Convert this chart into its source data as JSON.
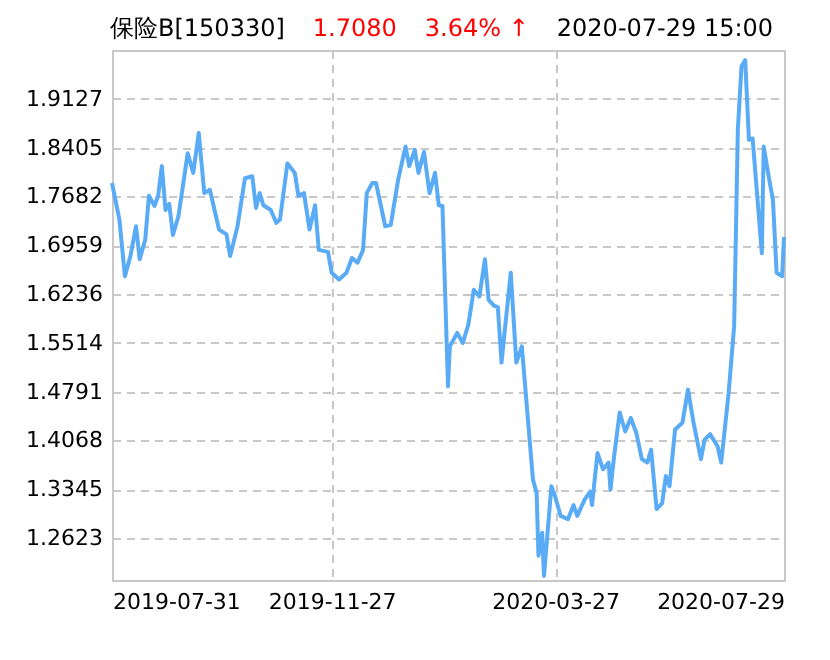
{
  "chart_data": {
    "type": "line",
    "title": "保险B[150330]",
    "annotations": [
      "1.7080",
      "3.64% ↑",
      "2020-07-29 15:00"
    ],
    "x": [
      "2019-07-31",
      "2019-08-04",
      "2019-08-07",
      "2019-08-10",
      "2019-08-13",
      "2019-08-15",
      "2019-08-18",
      "2019-08-20",
      "2019-08-23",
      "2019-08-25",
      "2019-08-27",
      "2019-08-29",
      "2019-08-31",
      "2019-09-02",
      "2019-09-05",
      "2019-09-10",
      "2019-09-13",
      "2019-09-16",
      "2019-09-19",
      "2019-09-22",
      "2019-09-27",
      "2019-10-01",
      "2019-10-03",
      "2019-10-07",
      "2019-10-11",
      "2019-10-15",
      "2019-10-17",
      "2019-10-19",
      "2019-10-21",
      "2019-10-25",
      "2019-10-28",
      "2019-10-30",
      "2019-11-03",
      "2019-11-07",
      "2019-11-09",
      "2019-11-12",
      "2019-11-15",
      "2019-11-18",
      "2019-11-20",
      "2019-11-25",
      "2019-11-27",
      "2019-12-01",
      "2019-12-05",
      "2019-12-08",
      "2019-12-11",
      "2019-12-14",
      "2019-12-16",
      "2019-12-19",
      "2019-12-21",
      "2019-12-26",
      "2019-12-29",
      "2020-01-02",
      "2020-01-06",
      "2020-01-08",
      "2020-01-11",
      "2020-01-13",
      "2020-01-16",
      "2020-01-19",
      "2020-01-22",
      "2020-01-24",
      "2020-01-26",
      "2020-01-29",
      "2020-01-30",
      "2020-02-03",
      "2020-02-06",
      "2020-02-09",
      "2020-02-12",
      "2020-02-15",
      "2020-02-18",
      "2020-02-20",
      "2020-02-23",
      "2020-02-25",
      "2020-02-27",
      "2020-02-29",
      "2020-03-03",
      "2020-03-06",
      "2020-03-09",
      "2020-03-15",
      "2020-03-17",
      "2020-03-18",
      "2020-03-20",
      "2020-03-21",
      "2020-03-25",
      "2020-03-27",
      "2020-03-30",
      "2020-04-03",
      "2020-04-06",
      "2020-04-08",
      "2020-04-12",
      "2020-04-15",
      "2020-04-16",
      "2020-04-19",
      "2020-04-22",
      "2020-04-25",
      "2020-04-26",
      "2020-04-28",
      "2020-05-01",
      "2020-05-04",
      "2020-05-07",
      "2020-05-10",
      "2020-05-13",
      "2020-05-16",
      "2020-05-18",
      "2020-05-21",
      "2020-05-24",
      "2020-05-26",
      "2020-05-28",
      "2020-05-31",
      "2020-06-04",
      "2020-06-07",
      "2020-06-10",
      "2020-06-14",
      "2020-06-16",
      "2020-06-19",
      "2020-06-23",
      "2020-06-25",
      "2020-06-29",
      "2020-07-02",
      "2020-07-04",
      "2020-07-06",
      "2020-07-08",
      "2020-07-10",
      "2020-07-12",
      "2020-07-17",
      "2020-07-18",
      "2020-07-21",
      "2020-07-23",
      "2020-07-25",
      "2020-07-28",
      "2020-07-29"
    ],
    "series": [
      {
        "color": "#5aabf5",
        "values": [
          1.788,
          1.734,
          1.65,
          1.68,
          1.724,
          1.675,
          1.704,
          1.769,
          1.754,
          1.769,
          1.813,
          1.748,
          1.757,
          1.711,
          1.739,
          1.832,
          1.803,
          1.862,
          1.773,
          1.778,
          1.719,
          1.712,
          1.68,
          1.724,
          1.795,
          1.798,
          1.751,
          1.773,
          1.755,
          1.748,
          1.729,
          1.734,
          1.817,
          1.803,
          1.769,
          1.773,
          1.719,
          1.755,
          1.689,
          1.686,
          1.655,
          1.645,
          1.655,
          1.677,
          1.67,
          1.689,
          1.773,
          1.788,
          1.788,
          1.724,
          1.726,
          1.793,
          1.842,
          1.813,
          1.837,
          1.803,
          1.834,
          1.773,
          1.803,
          1.755,
          1.754,
          1.487,
          1.546,
          1.566,
          1.551,
          1.578,
          1.63,
          1.62,
          1.675,
          1.615,
          1.606,
          1.604,
          1.522,
          1.576,
          1.655,
          1.522,
          1.546,
          1.349,
          1.329,
          1.236,
          1.27,
          1.206,
          1.339,
          1.324,
          1.295,
          1.29,
          1.311,
          1.295,
          1.319,
          1.331,
          1.311,
          1.388,
          1.364,
          1.374,
          1.334,
          1.384,
          1.448,
          1.42,
          1.44,
          1.418,
          1.379,
          1.374,
          1.393,
          1.305,
          1.314,
          1.354,
          1.339,
          1.423,
          1.433,
          1.482,
          1.433,
          1.379,
          1.408,
          1.416,
          1.398,
          1.374,
          1.477,
          1.576,
          1.867,
          1.961,
          1.97,
          1.852,
          1.854,
          1.684,
          1.842,
          1.793,
          1.763,
          1.655,
          1.65,
          1.708
        ]
      }
    ],
    "xlim": [
      "2019-07-31",
      "2020-07-29"
    ],
    "xticks": [
      "2019-07-31",
      "2019-11-27",
      "2020-03-27",
      "2020-07-29"
    ],
    "ylim": [
      1.2,
      1.985
    ],
    "yticks": [
      1.2623,
      1.3345,
      1.4068,
      1.4791,
      1.5514,
      1.6236,
      1.6959,
      1.7682,
      1.8405,
      1.9127
    ],
    "grid": true
  }
}
